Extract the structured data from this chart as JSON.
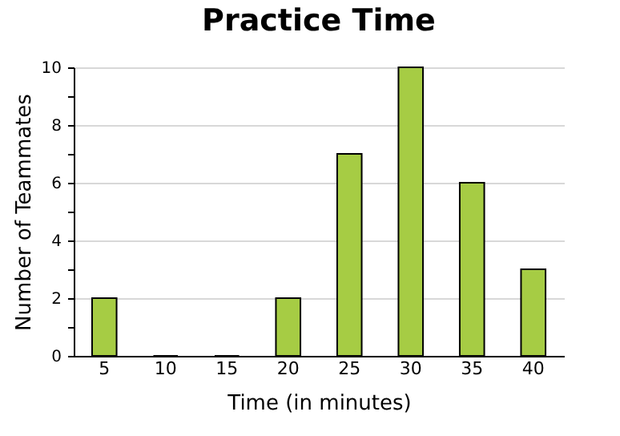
{
  "chart_data": {
    "type": "bar",
    "title": "Practice Time",
    "xlabel": "Time (in minutes)",
    "ylabel": "Number of Teammates",
    "categories": [
      "5",
      "10",
      "15",
      "20",
      "25",
      "30",
      "35",
      "40"
    ],
    "values": [
      2,
      0,
      0,
      2,
      7,
      10,
      6,
      3
    ],
    "color": "#a6cc44",
    "ylim": [
      0,
      10
    ],
    "yticks": [
      0,
      {
        "value": 1,
        "label": null
      },
      2,
      {
        "value": 3,
        "label": null
      },
      4,
      {
        "value": 5,
        "label": null
      },
      6,
      {
        "value": 7,
        "label": null
      },
      8,
      {
        "value": 9,
        "label": null
      },
      10
    ],
    "grid": "y"
  }
}
